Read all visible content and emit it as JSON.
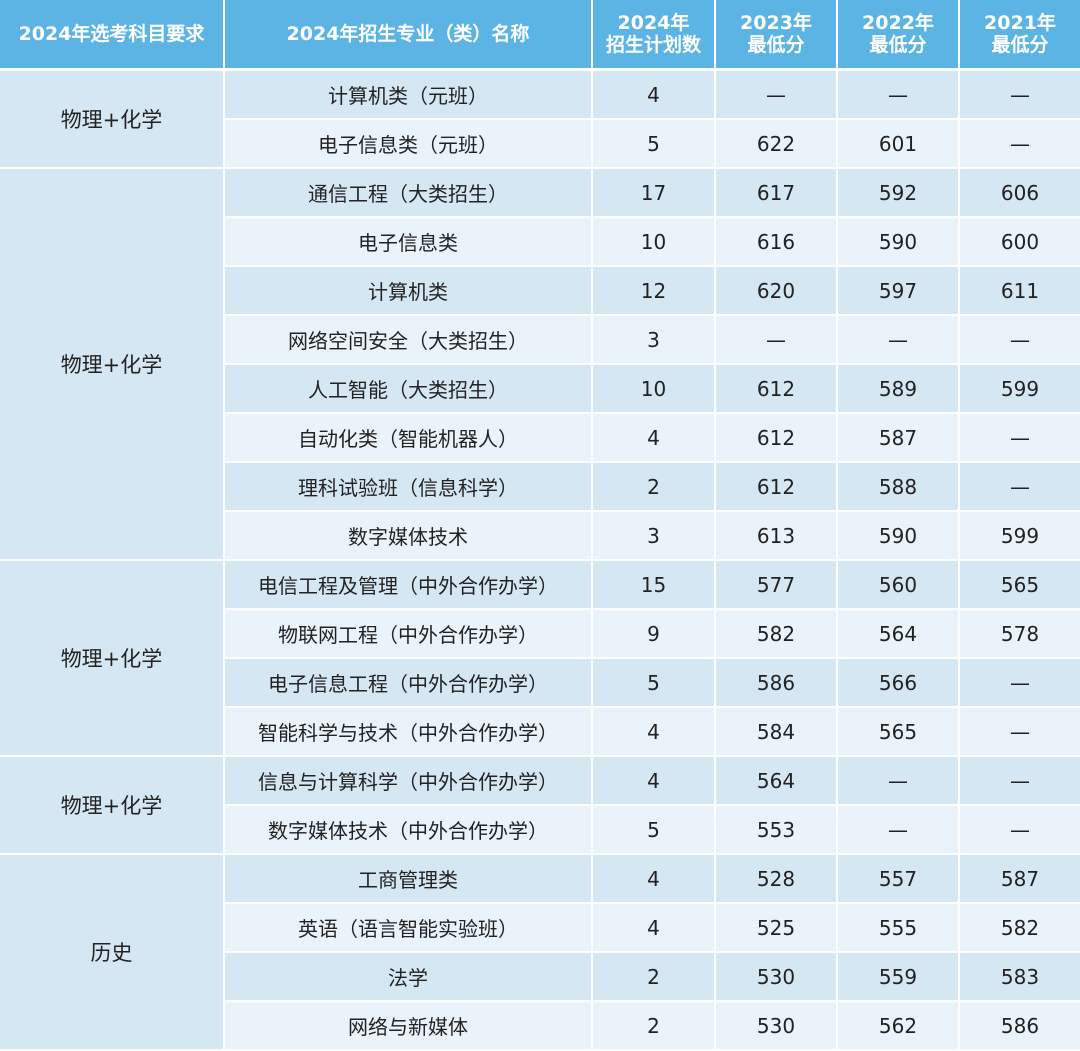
{
  "header": {
    "subject_req": "2024年选考科目要求",
    "major_name": "2024年招生专业（类）名称",
    "plan_line1": "2024年",
    "plan_line2": "招生计划数",
    "y2023_line1": "2023年",
    "y2023_line2": "最低分",
    "y2022_line1": "2022年",
    "y2022_line2": "最低分",
    "y2021_line1": "2021年",
    "y2021_line2": "最低分"
  },
  "groups": [
    {
      "subject": "物理+化学",
      "rows": [
        {
          "major": "计算机类（元班）",
          "plan": "4",
          "s2023": "—",
          "s2022": "—",
          "s2021": "—"
        },
        {
          "major": "电子信息类（元班）",
          "plan": "5",
          "s2023": "622",
          "s2022": "601",
          "s2021": "—"
        }
      ]
    },
    {
      "subject": "物理+化学",
      "rows": [
        {
          "major": "通信工程（大类招生）",
          "plan": "17",
          "s2023": "617",
          "s2022": "592",
          "s2021": "606"
        },
        {
          "major": "电子信息类",
          "plan": "10",
          "s2023": "616",
          "s2022": "590",
          "s2021": "600"
        },
        {
          "major": "计算机类",
          "plan": "12",
          "s2023": "620",
          "s2022": "597",
          "s2021": "611"
        },
        {
          "major": "网络空间安全（大类招生）",
          "plan": "3",
          "s2023": "—",
          "s2022": "—",
          "s2021": "—"
        },
        {
          "major": "人工智能（大类招生）",
          "plan": "10",
          "s2023": "612",
          "s2022": "589",
          "s2021": "599"
        },
        {
          "major": "自动化类（智能机器人）",
          "plan": "4",
          "s2023": "612",
          "s2022": "587",
          "s2021": "—"
        },
        {
          "major": "理科试验班（信息科学）",
          "plan": "2",
          "s2023": "612",
          "s2022": "588",
          "s2021": "—"
        },
        {
          "major": "数字媒体技术",
          "plan": "3",
          "s2023": "613",
          "s2022": "590",
          "s2021": "599"
        }
      ]
    },
    {
      "subject": "物理+化学",
      "rows": [
        {
          "major": "电信工程及管理（中外合作办学）",
          "plan": "15",
          "s2023": "577",
          "s2022": "560",
          "s2021": "565"
        },
        {
          "major": "物联网工程（中外合作办学）",
          "plan": "9",
          "s2023": "582",
          "s2022": "564",
          "s2021": "578"
        },
        {
          "major": "电子信息工程（中外合作办学）",
          "plan": "5",
          "s2023": "586",
          "s2022": "566",
          "s2021": "—"
        },
        {
          "major": "智能科学与技术（中外合作办学）",
          "plan": "4",
          "s2023": "584",
          "s2022": "565",
          "s2021": "—"
        }
      ]
    },
    {
      "subject": "物理+化学",
      "rows": [
        {
          "major": "信息与计算科学（中外合作办学）",
          "plan": "4",
          "s2023": "564",
          "s2022": "—",
          "s2021": "—"
        },
        {
          "major": "数字媒体技术（中外合作办学）",
          "plan": "5",
          "s2023": "553",
          "s2022": "—",
          "s2021": "—"
        }
      ]
    },
    {
      "subject": "历史",
      "rows": [
        {
          "major": "工商管理类",
          "plan": "4",
          "s2023": "528",
          "s2022": "557",
          "s2021": "587"
        },
        {
          "major": "英语（语言智能实验班）",
          "plan": "4",
          "s2023": "525",
          "s2022": "555",
          "s2021": "582"
        },
        {
          "major": "法学",
          "plan": "2",
          "s2023": "530",
          "s2022": "559",
          "s2021": "583"
        },
        {
          "major": "网络与新媒体",
          "plan": "2",
          "s2023": "530",
          "s2022": "562",
          "s2021": "586"
        }
      ]
    }
  ]
}
